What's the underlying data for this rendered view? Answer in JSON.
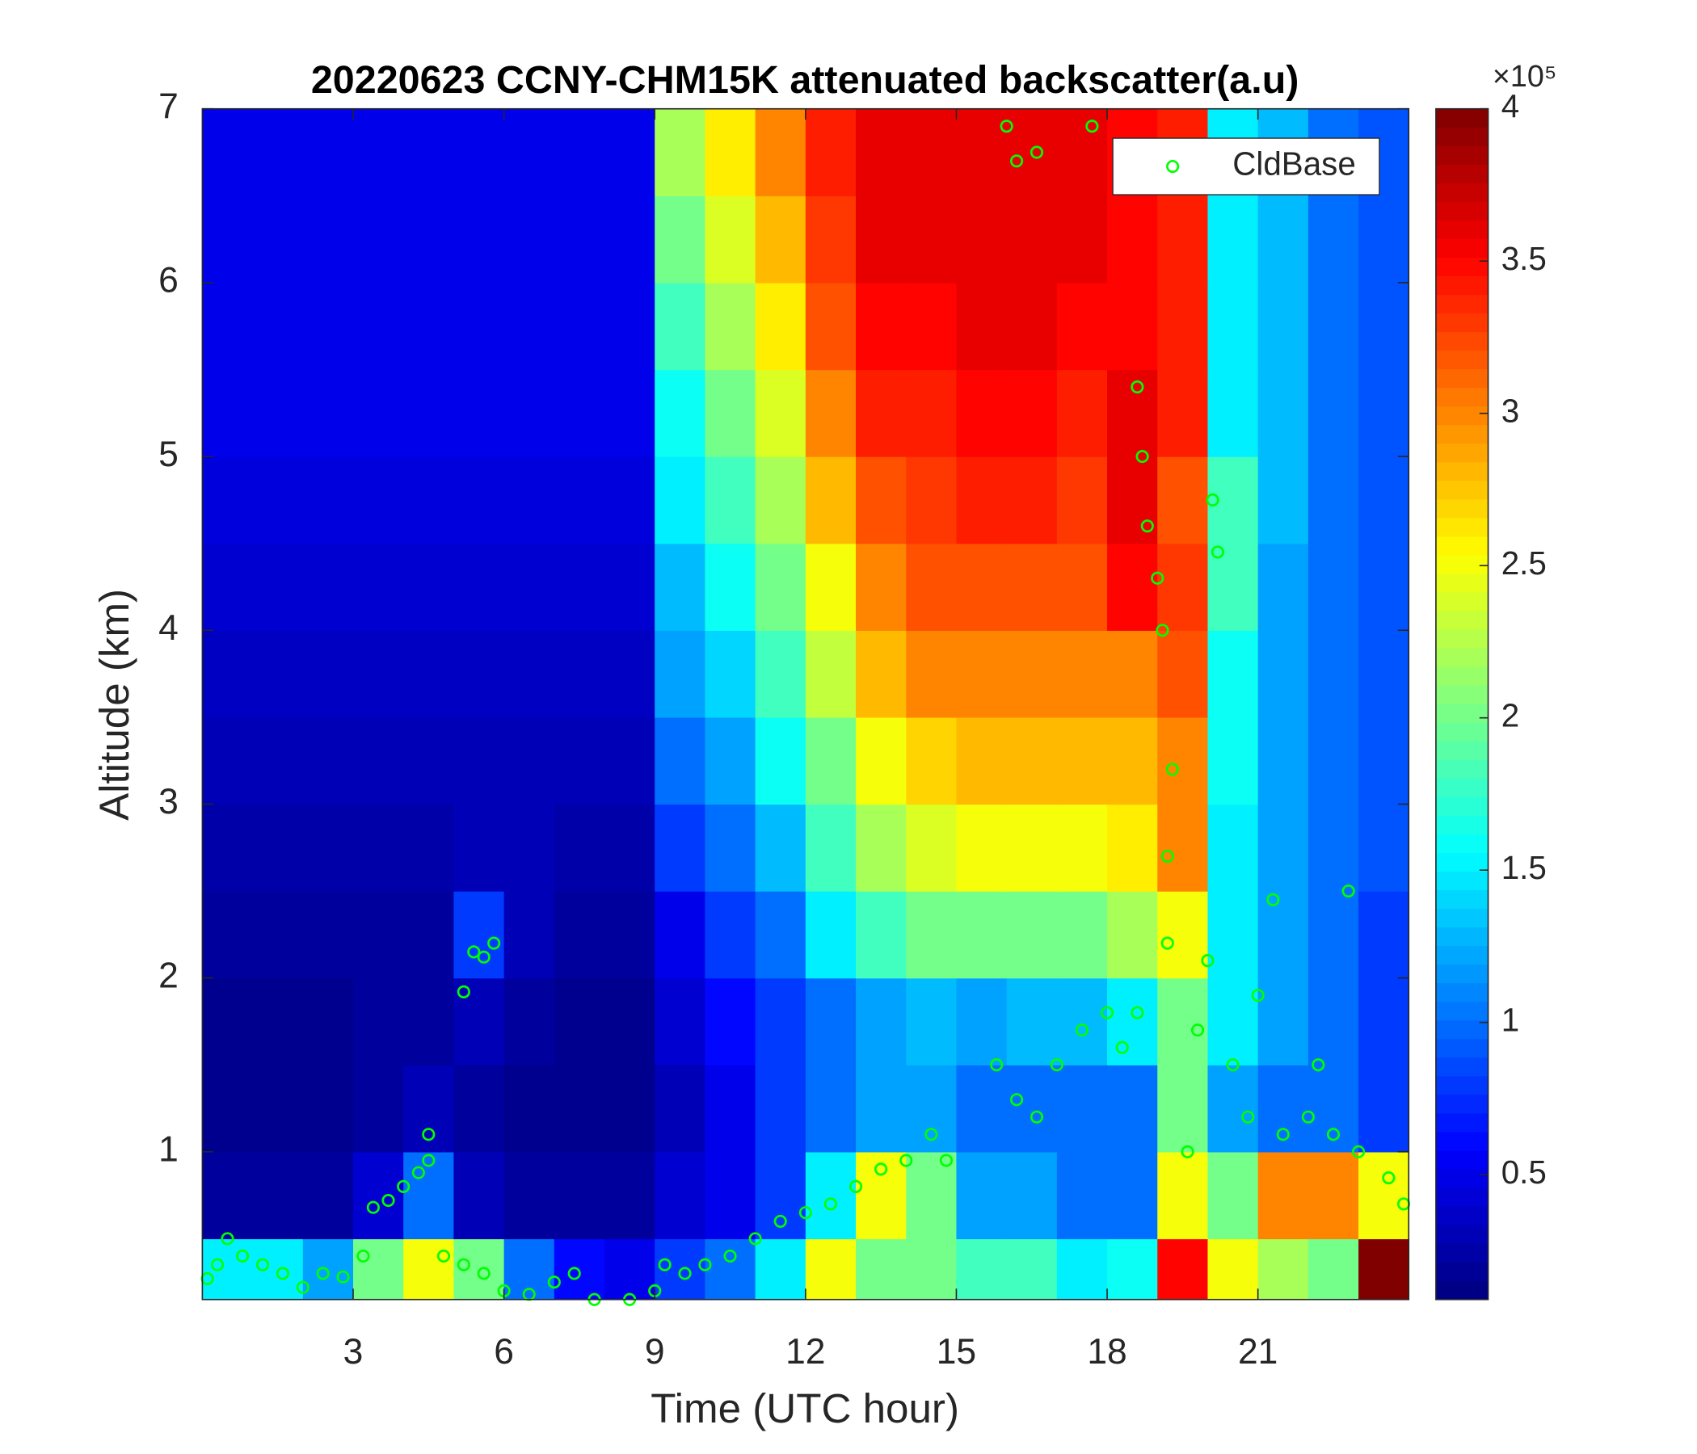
{
  "chart_data": {
    "type": "heatmap",
    "title": "20220623 CCNY-CHM15K attenuated backscatter(a.u)",
    "x_label": "Time (UTC hour)",
    "y_label": "Altitude (km)",
    "xlim": [
      0,
      24
    ],
    "ylim": [
      0.15,
      7
    ],
    "xticks": [
      3,
      6,
      9,
      12,
      15,
      18,
      21
    ],
    "yticks": [
      1,
      2,
      3,
      4,
      5,
      6,
      7
    ],
    "colormap": "jet",
    "clim": [
      0.09,
      4
    ],
    "colorbar_ticks": [
      0.5,
      1,
      1.5,
      2,
      2.5,
      3,
      3.5,
      4
    ],
    "colorbar_multiplier": "×10⁵",
    "x_edges": [
      0,
      1,
      2,
      3,
      4,
      5,
      6,
      7,
      8,
      9,
      10,
      11,
      12,
      13,
      14,
      15,
      16,
      17,
      18,
      19,
      20,
      21,
      22,
      23,
      24
    ],
    "y_edges": [
      0.15,
      0.5,
      1,
      1.5,
      2,
      2.5,
      3,
      3.5,
      4,
      4.5,
      5,
      5.5,
      6,
      6.5,
      7
    ],
    "z": [
      [
        1.5,
        1.5,
        1.2,
        2.0,
        2.5,
        2.0,
        1.0,
        0.6,
        0.5,
        0.8,
        1.0,
        1.5,
        2.5,
        2.0,
        2.0,
        1.8,
        1.8,
        1.5,
        1.6,
        3.5,
        2.5,
        2.2,
        2.0,
        4.0
      ],
      [
        0.2,
        0.2,
        0.2,
        0.4,
        1.0,
        0.3,
        0.2,
        0.2,
        0.2,
        0.4,
        0.5,
        0.8,
        1.5,
        2.5,
        2.0,
        1.2,
        1.2,
        1.0,
        1.0,
        2.5,
        2.0,
        3.0,
        3.0,
        2.5
      ],
      [
        0.15,
        0.15,
        0.15,
        0.2,
        0.3,
        0.2,
        0.15,
        0.15,
        0.15,
        0.3,
        0.5,
        0.8,
        1.0,
        1.2,
        1.2,
        1.0,
        1.0,
        1.0,
        1.0,
        2.0,
        1.2,
        1.0,
        1.0,
        0.8
      ],
      [
        0.15,
        0.15,
        0.15,
        0.2,
        0.2,
        0.3,
        0.2,
        0.15,
        0.15,
        0.4,
        0.6,
        0.8,
        1.0,
        1.2,
        1.3,
        1.2,
        1.3,
        1.3,
        1.5,
        2.0,
        1.5,
        1.2,
        1.0,
        0.8
      ],
      [
        0.2,
        0.2,
        0.2,
        0.2,
        0.2,
        0.8,
        0.3,
        0.2,
        0.2,
        0.5,
        0.8,
        1.0,
        1.5,
        1.8,
        2.0,
        2.0,
        2.0,
        2.0,
        2.2,
        2.5,
        1.5,
        1.2,
        1.0,
        0.8
      ],
      [
        0.25,
        0.25,
        0.25,
        0.25,
        0.25,
        0.3,
        0.3,
        0.25,
        0.25,
        0.8,
        1.0,
        1.3,
        1.8,
        2.2,
        2.4,
        2.5,
        2.5,
        2.5,
        2.6,
        3.0,
        1.5,
        1.2,
        1.0,
        0.9
      ],
      [
        0.3,
        0.3,
        0.3,
        0.3,
        0.3,
        0.3,
        0.3,
        0.3,
        0.3,
        1.0,
        1.2,
        1.6,
        2.0,
        2.5,
        2.7,
        2.8,
        2.8,
        2.8,
        2.8,
        3.0,
        1.6,
        1.2,
        1.0,
        0.9
      ],
      [
        0.35,
        0.35,
        0.35,
        0.35,
        0.35,
        0.35,
        0.35,
        0.35,
        0.35,
        1.2,
        1.4,
        1.8,
        2.3,
        2.8,
        3.0,
        3.0,
        3.0,
        3.0,
        3.0,
        3.2,
        1.6,
        1.2,
        1.0,
        0.9
      ],
      [
        0.4,
        0.4,
        0.4,
        0.4,
        0.4,
        0.4,
        0.4,
        0.4,
        0.4,
        1.3,
        1.6,
        2.0,
        2.5,
        3.0,
        3.2,
        3.2,
        3.2,
        3.2,
        3.5,
        3.3,
        1.8,
        1.2,
        1.0,
        0.9
      ],
      [
        0.45,
        0.45,
        0.45,
        0.45,
        0.45,
        0.45,
        0.45,
        0.45,
        0.45,
        1.5,
        1.8,
        2.2,
        2.8,
        3.2,
        3.3,
        3.4,
        3.4,
        3.3,
        3.6,
        3.2,
        1.8,
        1.3,
        1.0,
        0.9
      ],
      [
        0.5,
        0.5,
        0.5,
        0.5,
        0.5,
        0.5,
        0.5,
        0.5,
        0.5,
        1.6,
        2.0,
        2.4,
        3.0,
        3.4,
        3.4,
        3.5,
        3.5,
        3.4,
        3.6,
        3.4,
        1.5,
        1.3,
        1.0,
        0.9
      ],
      [
        0.5,
        0.5,
        0.5,
        0.5,
        0.5,
        0.5,
        0.5,
        0.5,
        0.5,
        1.8,
        2.2,
        2.6,
        3.2,
        3.5,
        3.5,
        3.6,
        3.6,
        3.5,
        3.5,
        3.4,
        1.5,
        1.3,
        1.0,
        0.9
      ],
      [
        0.5,
        0.5,
        0.5,
        0.5,
        0.5,
        0.5,
        0.5,
        0.5,
        0.5,
        2.0,
        2.4,
        2.8,
        3.3,
        3.6,
        3.6,
        3.6,
        3.6,
        3.6,
        3.5,
        3.4,
        1.5,
        1.3,
        1.0,
        0.9
      ],
      [
        0.5,
        0.5,
        0.5,
        0.5,
        0.5,
        0.5,
        0.5,
        0.5,
        0.5,
        2.2,
        2.6,
        3.0,
        3.4,
        3.6,
        3.6,
        3.6,
        3.6,
        3.6,
        3.5,
        3.4,
        1.5,
        1.3,
        1.0,
        0.9
      ]
    ],
    "series": [
      {
        "name": "CldBase",
        "type": "scatter",
        "color": "#00ff00",
        "x": [
          0.1,
          0.3,
          0.5,
          0.8,
          1.2,
          1.6,
          2.0,
          2.4,
          2.8,
          3.2,
          3.4,
          3.7,
          4.0,
          4.3,
          4.5,
          4.5,
          5.2,
          5.4,
          5.6,
          5.8,
          4.8,
          5.2,
          5.6,
          6.0,
          6.5,
          7.0,
          7.4,
          7.8,
          8.5,
          9.0,
          9.2,
          9.6,
          10.0,
          10.5,
          11.0,
          11.5,
          12.0,
          12.5,
          13.0,
          13.5,
          14.0,
          14.5,
          14.8,
          15.8,
          16.2,
          16.6,
          17.0,
          17.5,
          18.0,
          18.3,
          18.6,
          16.0,
          16.2,
          16.6,
          17.7,
          18.6,
          18.7,
          18.8,
          19.0,
          19.1,
          19.3,
          19.2,
          19.2,
          19.6,
          19.8,
          20.0,
          20.1,
          20.2,
          20.5,
          20.8,
          21.0,
          21.3,
          21.5,
          22.0,
          22.2,
          22.5,
          22.8,
          23.0,
          23.6,
          23.9
        ],
        "values": [
          0.27,
          0.35,
          0.5,
          0.4,
          0.35,
          0.3,
          0.22,
          0.3,
          0.28,
          0.4,
          0.68,
          0.72,
          0.8,
          0.88,
          0.95,
          1.1,
          1.92,
          2.15,
          2.12,
          2.2,
          0.4,
          0.35,
          0.3,
          0.2,
          0.18,
          0.25,
          0.3,
          0.15,
          0.15,
          0.2,
          0.35,
          0.3,
          0.35,
          0.4,
          0.5,
          0.6,
          0.65,
          0.7,
          0.8,
          0.9,
          0.95,
          1.1,
          0.95,
          1.5,
          1.3,
          1.2,
          1.5,
          1.7,
          1.8,
          1.6,
          1.8,
          6.9,
          6.7,
          6.75,
          6.9,
          5.4,
          5.0,
          4.6,
          4.3,
          4.0,
          3.2,
          2.7,
          2.2,
          1.0,
          1.7,
          2.1,
          4.75,
          4.45,
          1.5,
          1.2,
          1.9,
          2.45,
          1.1,
          1.2,
          1.5,
          1.1,
          2.5,
          1.0,
          0.85,
          0.7
        ]
      }
    ],
    "legend_position": "upper right"
  }
}
